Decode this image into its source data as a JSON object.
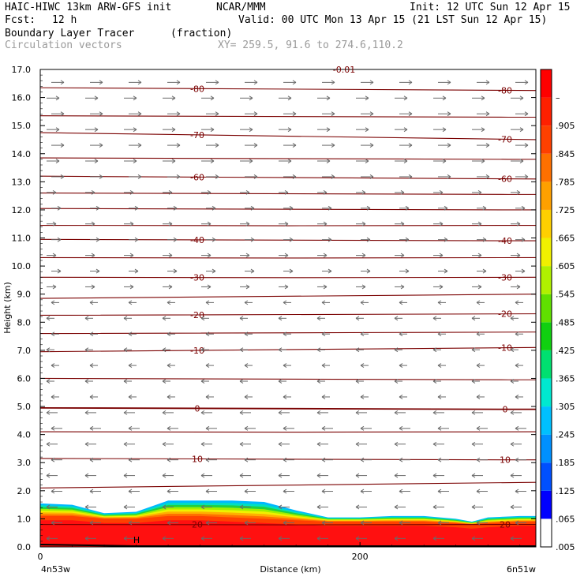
{
  "header": {
    "model": "HAIC-HIWC 13km ARW-GFS init",
    "org": "NCAR/MMM",
    "init": "Init: 12 UTC Sun 12 Apr 15",
    "fcst_label": "Fcst:",
    "fcst_value": "12 h",
    "valid": "Valid: 00 UTC Mon 13 Apr 15 (21 LST Sun 12 Apr 15)",
    "field_name": "Boundary Layer Tracer",
    "field_units": "(fraction)",
    "vector_name": "Circulation vectors",
    "xy_range": "XY= 259.5, 91.6 to 274.6,110.2"
  },
  "chart_data": {
    "type": "heatmap",
    "xlabel": "Distance (km)",
    "ylabel": "Height (km)",
    "x_start_label": "4n53w",
    "x_end_label": "6n51w",
    "xlim": [
      0,
      310
    ],
    "ylim": [
      0,
      17
    ],
    "x_ticks": [
      {
        "value": 0,
        "label": "0"
      },
      {
        "value": 200,
        "label": "200"
      }
    ],
    "y_ticks": [
      {
        "value": 0,
        "label": "0.0"
      },
      {
        "value": 1,
        "label": "1.0"
      },
      {
        "value": 2,
        "label": "2.0"
      },
      {
        "value": 3,
        "label": "3.0"
      },
      {
        "value": 4,
        "label": "4.0"
      },
      {
        "value": 5,
        "label": "5.0"
      },
      {
        "value": 6,
        "label": "6.0"
      },
      {
        "value": 7,
        "label": "7.0"
      },
      {
        "value": 8,
        "label": "8.0"
      },
      {
        "value": 9,
        "label": "9.0"
      },
      {
        "value": 10,
        "label": "10.0"
      },
      {
        "value": 11,
        "label": "11.0"
      },
      {
        "value": 12,
        "label": "12.0"
      },
      {
        "value": 13,
        "label": "13.0"
      },
      {
        "value": 14,
        "label": "14.0"
      },
      {
        "value": 15,
        "label": "15.0"
      },
      {
        "value": 16,
        "label": "16.0"
      },
      {
        "value": 17,
        "label": "17.0"
      }
    ],
    "colorbar": {
      "labels": [
        ".005",
        ".065",
        ".125",
        ".185",
        ".245",
        ".305",
        ".365",
        ".425",
        ".485",
        ".545",
        ".605",
        ".665",
        ".725",
        ".785",
        ".845",
        ".905",
        "–"
      ],
      "colors": [
        "#ffffff",
        "#0000ff",
        "#0050ff",
        "#0090ff",
        "#00c0ff",
        "#00e8d0",
        "#00e070",
        "#10d010",
        "#60e000",
        "#b0f000",
        "#f0f000",
        "#ffd000",
        "#ffa000",
        "#ff7000",
        "#ff4000",
        "#ff2000",
        "#ff0000"
      ]
    },
    "tracer_layer": {
      "x": [
        0,
        20,
        40,
        60,
        80,
        100,
        120,
        140,
        160,
        180,
        200,
        220,
        240,
        260,
        270,
        280,
        300,
        310
      ],
      "top_km": [
        1.55,
        1.5,
        1.2,
        1.25,
        1.65,
        1.65,
        1.65,
        1.6,
        1.3,
        1.05,
        1.05,
        1.1,
        1.1,
        1.0,
        0.9,
        1.05,
        1.1,
        1.1
      ],
      "core_km": [
        1.1,
        1.1,
        1.0,
        1.0,
        1.1,
        1.1,
        1.05,
        1.0,
        0.95,
        0.9,
        0.9,
        0.9,
        0.9,
        0.85,
        0.8,
        0.85,
        0.9,
        0.9
      ]
    },
    "temperature_contours": [
      {
        "value": -80,
        "label": "-80",
        "y_left": 16.35,
        "y_right": 16.25
      },
      {
        "value": -75,
        "label": "",
        "y_left": 15.35,
        "y_right": 15.3
      },
      {
        "value": -70,
        "label": "-70",
        "y_left": 14.75,
        "y_right": 14.5
      },
      {
        "value": -65,
        "label": "",
        "y_left": 13.85,
        "y_right": 13.8
      },
      {
        "value": -60,
        "label": "-60",
        "y_left": 13.2,
        "y_right": 13.1
      },
      {
        "value": -55,
        "label": "",
        "y_left": 12.6,
        "y_right": 12.55
      },
      {
        "value": -50,
        "label": "",
        "y_left": 12.05,
        "y_right": 12.0
      },
      {
        "value": -45,
        "label": "",
        "y_left": 11.45,
        "y_right": 11.45
      },
      {
        "value": -40,
        "label": "-40",
        "y_left": 10.95,
        "y_right": 10.9
      },
      {
        "value": -35,
        "label": "",
        "y_left": 10.3,
        "y_right": 10.3
      },
      {
        "value": -30,
        "label": "-30",
        "y_left": 9.6,
        "y_right": 9.6
      },
      {
        "value": -25,
        "label": "",
        "y_left": 8.85,
        "y_right": 9.0
      },
      {
        "value": -20,
        "label": "-20",
        "y_left": 8.25,
        "y_right": 8.3
      },
      {
        "value": -15,
        "label": "",
        "y_left": 7.6,
        "y_right": 7.65
      },
      {
        "value": -10,
        "label": "-10",
        "y_left": 6.95,
        "y_right": 7.1
      },
      {
        "value": -5,
        "label": "",
        "y_left": 6.0,
        "y_right": 5.95
      },
      {
        "value": 0,
        "label": "0",
        "y_left": 4.95,
        "y_right": 4.9
      },
      {
        "value": 5,
        "label": "",
        "y_left": 4.1,
        "y_right": 4.1
      },
      {
        "value": 10,
        "label": "10",
        "y_left": 3.15,
        "y_right": 3.1
      },
      {
        "value": 15,
        "label": "",
        "y_left": 2.1,
        "y_right": 2.3
      },
      {
        "value": 20,
        "label": "20",
        "y_left": 0.8,
        "y_right": 0.8
      }
    ],
    "top_label": "-0.01",
    "low_marker": "H"
  }
}
